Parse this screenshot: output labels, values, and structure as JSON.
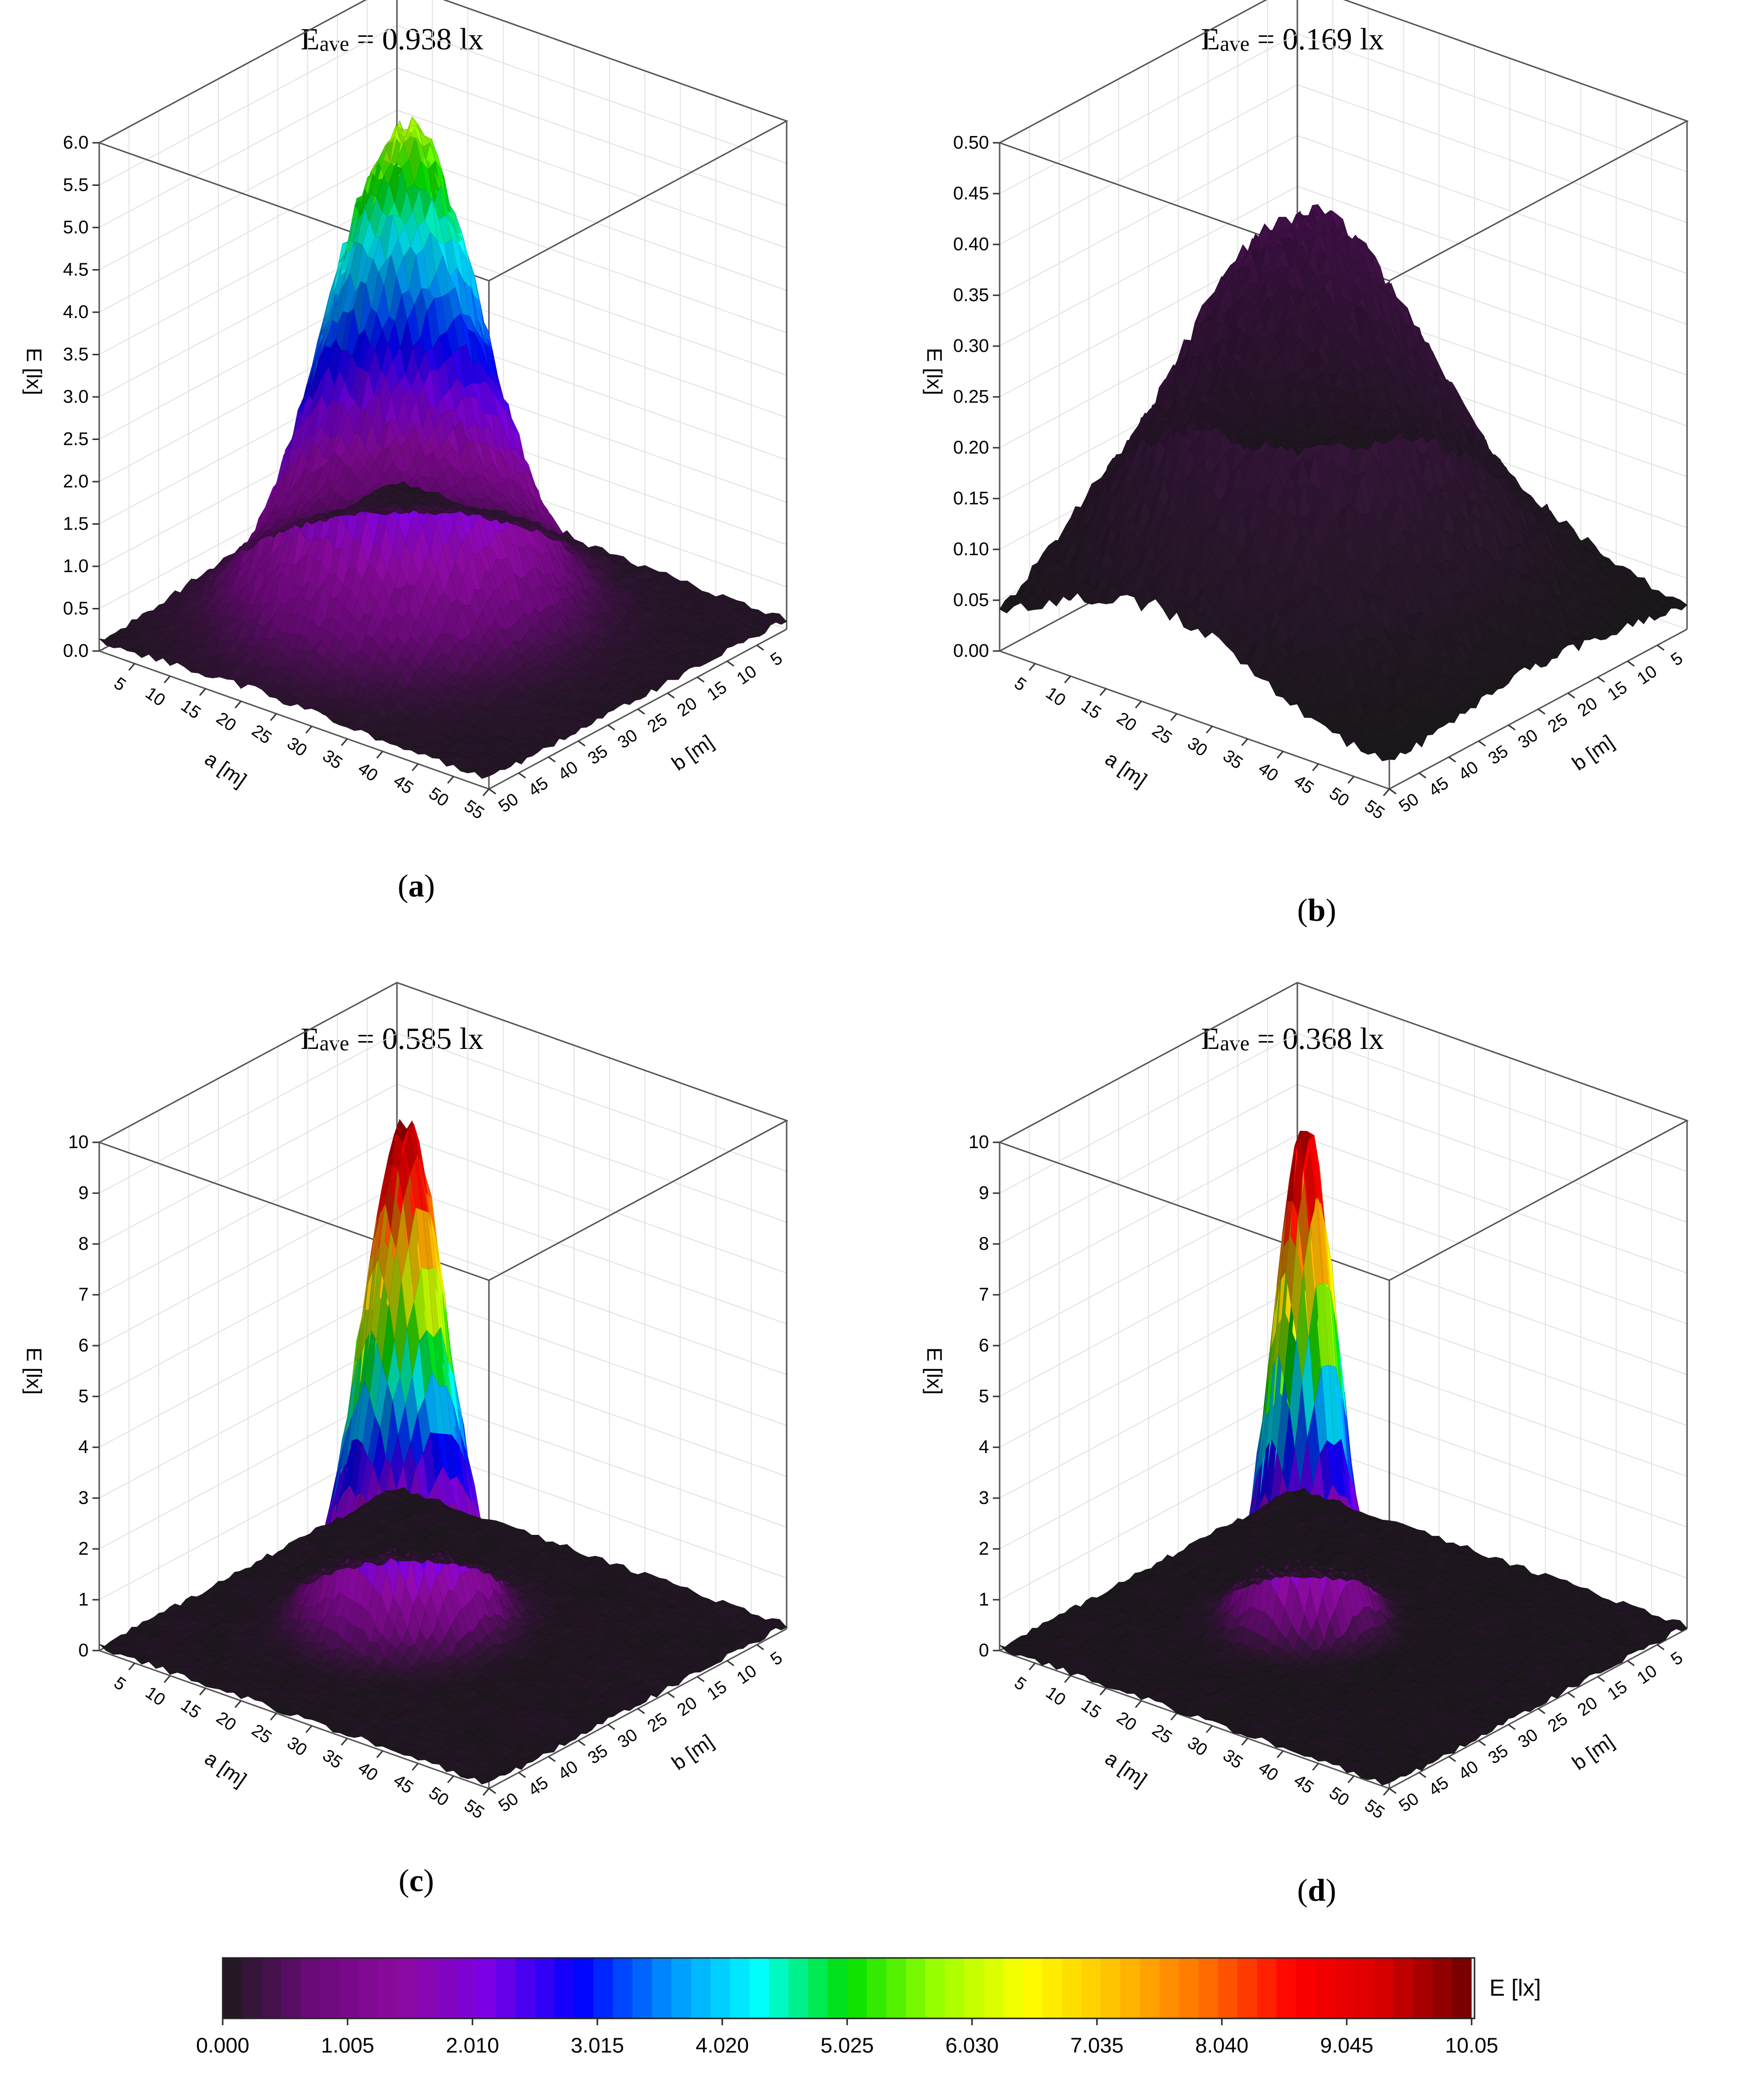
{
  "chart_data": [
    {
      "type": "surface3d",
      "panel_label": "a",
      "title": {
        "prefix": "E",
        "subscript": "ave",
        "suffix": " = 0.938 lx"
      },
      "zlabel": "E [lx]",
      "xlabel": "a [m]",
      "ylabel": "b [m]",
      "zlim": [
        0,
        6
      ],
      "zticks": [
        "0.0",
        "0.5",
        "1.0",
        "1.5",
        "2.0",
        "2.5",
        "3.0",
        "3.5",
        "4.0",
        "4.5",
        "5.0",
        "5.5",
        "6.0"
      ],
      "xticks": [
        "5",
        "10",
        "15",
        "20",
        "25",
        "30",
        "35",
        "40",
        "45",
        "50",
        "55"
      ],
      "yticks": [
        "5",
        "10",
        "15",
        "20",
        "25",
        "30",
        "35",
        "40",
        "45",
        "50"
      ],
      "surface": {
        "peak": 5.9,
        "peak_a": 22,
        "peak_b": 25,
        "spread_m": 8.5,
        "floor": 0.12
      }
    },
    {
      "type": "surface3d",
      "panel_label": "b",
      "title": {
        "prefix": "E",
        "subscript": "ave",
        "suffix": " = 0.169 lx"
      },
      "zlabel": "E [lx]",
      "xlabel": "a [m]",
      "ylabel": "b [m]",
      "zlim": [
        0,
        0.5
      ],
      "zticks": [
        "0.00",
        "0.05",
        "0.10",
        "0.15",
        "0.20",
        "0.25",
        "0.30",
        "0.35",
        "0.40",
        "0.45",
        "0.50"
      ],
      "xticks": [
        "5",
        "10",
        "15",
        "20",
        "25",
        "30",
        "35",
        "40",
        "45",
        "50",
        "55"
      ],
      "yticks": [
        "5",
        "10",
        "15",
        "20",
        "25",
        "30",
        "35",
        "40",
        "45",
        "50"
      ],
      "surface": {
        "peak": 0.4,
        "peak_a": 22,
        "peak_b": 25,
        "spread_m": 14,
        "floor": 0.02
      }
    },
    {
      "type": "surface3d",
      "panel_label": "c",
      "title": {
        "prefix": "E",
        "subscript": "ave",
        "suffix": " = 0.585 lx"
      },
      "zlabel": "E [lx]",
      "xlabel": "a [m]",
      "ylabel": "b [m]",
      "zlim": [
        0,
        10
      ],
      "zticks": [
        "0",
        "1",
        "2",
        "3",
        "4",
        "5",
        "6",
        "7",
        "8",
        "9",
        "10"
      ],
      "xticks": [
        "5",
        "10",
        "15",
        "20",
        "25",
        "30",
        "35",
        "40",
        "45",
        "50",
        "55"
      ],
      "yticks": [
        "5",
        "10",
        "15",
        "20",
        "25",
        "30",
        "35",
        "40",
        "45",
        "50"
      ],
      "surface": {
        "peak": 10.05,
        "peak_a": 22,
        "peak_b": 25,
        "spread_m": 4.6,
        "floor": 0.08
      }
    },
    {
      "type": "surface3d",
      "panel_label": "d",
      "title": {
        "prefix": "E",
        "subscript": "ave",
        "suffix": " = 0.368 lx"
      },
      "zlabel": "E [lx]",
      "xlabel": "a [m]",
      "ylabel": "b [m]",
      "zlim": [
        0,
        10
      ],
      "zticks": [
        "0",
        "1",
        "2",
        "3",
        "4",
        "5",
        "6",
        "7",
        "8",
        "9",
        "10"
      ],
      "xticks": [
        "5",
        "10",
        "15",
        "20",
        "25",
        "30",
        "35",
        "40",
        "45",
        "50",
        "55"
      ],
      "yticks": [
        "5",
        "10",
        "15",
        "20",
        "25",
        "30",
        "35",
        "40",
        "45",
        "50"
      ],
      "surface": {
        "peak": 10.05,
        "peak_a": 22,
        "peak_b": 25,
        "spread_m": 3.4,
        "floor": 0.06
      }
    }
  ],
  "colorbar": {
    "label": "E [lx]",
    "min": 0,
    "max": 10.05,
    "ticks": [
      "0.000",
      "1.005",
      "2.010",
      "3.015",
      "4.020",
      "5.025",
      "6.030",
      "7.035",
      "8.040",
      "9.045",
      "10.05"
    ],
    "colors": [
      "#1a1a1a",
      "#6a0a78",
      "#8c0aa0",
      "#7a00e6",
      "#0000ff",
      "#0090ff",
      "#00ffff",
      "#00e000",
      "#9aff00",
      "#ffff00",
      "#ffc000",
      "#ff7000",
      "#ff0000",
      "#d80000",
      "#6e0000"
    ]
  }
}
